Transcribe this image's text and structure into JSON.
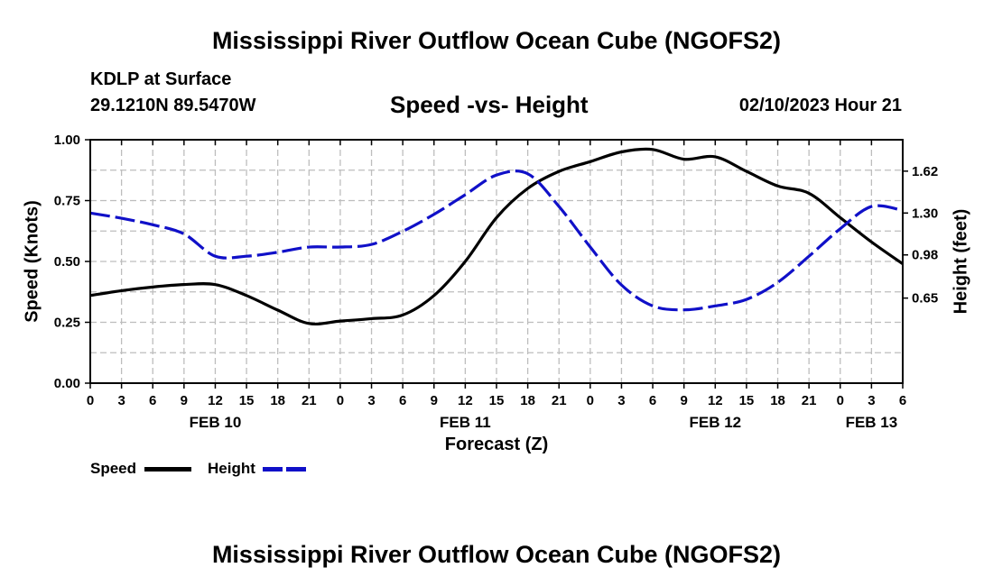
{
  "chart_data": {
    "type": "line",
    "title": "Mississippi River Outflow Ocean Cube (NGOFS2)",
    "footer_title": "Mississippi River Outflow Ocean Cube (NGOFS2)",
    "station": "KDLP at Surface",
    "coordinates": "29.1210N  89.5470W",
    "subtitle": "Speed -vs- Height",
    "datetime": "02/10/2023 Hour 21",
    "xlabel": "Forecast (Z)",
    "ylabel": "Speed (Knots)",
    "ylabel_right": "Height (feet)",
    "x_hours_range": [
      0,
      78
    ],
    "x_tick_labels": [
      "0",
      "3",
      "6",
      "9",
      "12",
      "15",
      "18",
      "21",
      "0",
      "3",
      "6",
      "9",
      "12",
      "15",
      "18",
      "21",
      "0",
      "3",
      "6",
      "9",
      "12",
      "15",
      "18",
      "21",
      "0",
      "3",
      "6"
    ],
    "date_labels": [
      {
        "label": "FEB 10",
        "hour": 12
      },
      {
        "label": "FEB 11",
        "hour": 36
      },
      {
        "label": "FEB 12",
        "hour": 60
      },
      {
        "label": "FEB 13",
        "hour": 75
      }
    ],
    "ylim": [
      0,
      1
    ],
    "y_ticks": [
      "0.00",
      "0.25",
      "0.50",
      "0.75",
      "1.00"
    ],
    "ylim_right": [
      0,
      1.86
    ],
    "y_ticks_right": [
      "0.65",
      "0.98",
      "1.30",
      "1.62"
    ],
    "grid": true,
    "colors": {
      "speed": "#000000",
      "height": "#1010c8",
      "grid": "#bdbdbd"
    },
    "legend": [
      {
        "name": "Speed",
        "color": "#000000",
        "style": "solid"
      },
      {
        "name": "Height",
        "color": "#1010c8",
        "style": "dashed"
      }
    ],
    "series": [
      {
        "name": "Speed",
        "axis": "left",
        "x": [
          0,
          3,
          6,
          9,
          12,
          15,
          18,
          21,
          24,
          27,
          30,
          33,
          36,
          39,
          42,
          45,
          48,
          51,
          54,
          57,
          60,
          63,
          66,
          69,
          72,
          75,
          78
        ],
        "values": [
          0.36,
          0.38,
          0.395,
          0.405,
          0.405,
          0.36,
          0.3,
          0.245,
          0.255,
          0.265,
          0.28,
          0.36,
          0.5,
          0.68,
          0.8,
          0.87,
          0.91,
          0.95,
          0.96,
          0.92,
          0.93,
          0.87,
          0.81,
          0.78,
          0.68,
          0.58,
          0.49
        ]
      },
      {
        "name": "Height",
        "axis": "right",
        "x": [
          0,
          3,
          6,
          9,
          12,
          15,
          18,
          21,
          24,
          27,
          30,
          33,
          36,
          39,
          42,
          45,
          48,
          51,
          54,
          57,
          60,
          63,
          66,
          69,
          72,
          75,
          78
        ],
        "values": [
          1.3,
          1.26,
          1.21,
          1.14,
          0.97,
          0.97,
          1.0,
          1.04,
          1.04,
          1.06,
          1.16,
          1.29,
          1.44,
          1.59,
          1.6,
          1.35,
          1.04,
          0.75,
          0.59,
          0.56,
          0.59,
          0.64,
          0.77,
          0.97,
          1.18,
          1.35,
          1.32
        ]
      }
    ]
  }
}
